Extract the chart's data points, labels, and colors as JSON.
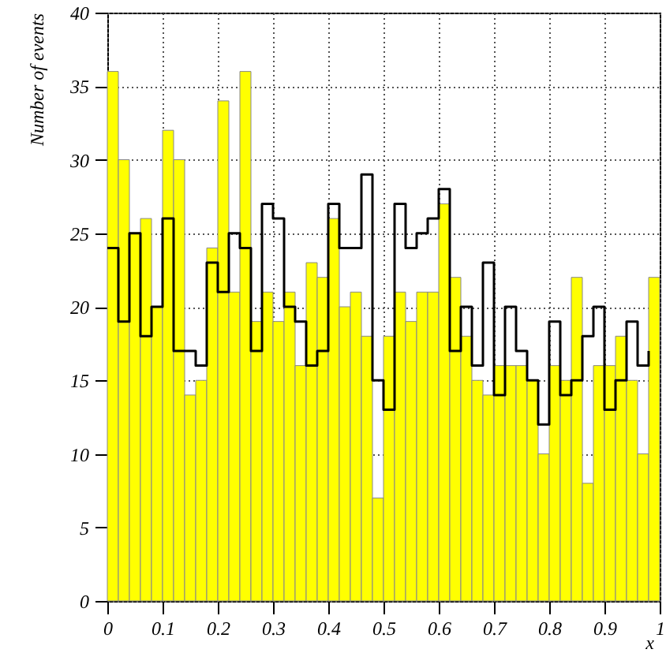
{
  "chart_data": {
    "type": "histogram",
    "xlabel": "x",
    "ylabel": "Number of events",
    "bins": [
      0,
      0.02,
      0.04,
      0.06,
      0.08,
      0.1,
      0.12,
      0.14,
      0.16,
      0.18,
      0.2,
      0.22,
      0.24,
      0.26,
      0.28,
      0.3,
      0.32,
      0.34,
      0.36,
      0.38,
      0.4,
      0.42,
      0.44,
      0.46,
      0.48,
      0.5,
      0.52,
      0.54,
      0.56,
      0.58,
      0.6,
      0.62,
      0.64,
      0.66,
      0.68,
      0.7,
      0.72,
      0.74,
      0.76,
      0.78,
      0.8,
      0.82,
      0.84,
      0.86,
      0.88,
      0.9,
      0.92,
      0.94,
      0.96,
      0.98,
      1
    ],
    "series": [
      {
        "color": "#ffff00",
        "values": [
          36,
          30,
          25,
          26,
          20,
          32,
          30,
          14,
          15,
          24,
          34,
          21,
          36,
          19,
          21,
          19,
          21,
          16,
          23,
          22,
          26,
          20,
          21,
          18,
          7,
          18,
          21,
          19,
          21,
          21,
          27,
          22,
          18,
          15,
          14,
          16,
          16,
          16,
          15,
          10,
          16,
          15,
          22,
          8,
          16,
          16,
          18,
          15,
          10,
          22
        ]
      },
      {
        "type": "step",
        "color": "#000000",
        "x": [
          0,
          0.02,
          0.04,
          0.06,
          0.08,
          0.1,
          0.12,
          0.14,
          0.16,
          0.18,
          0.2,
          0.22,
          0.24,
          0.26,
          0.28,
          0.3,
          0.32,
          0.34,
          0.36,
          0.38,
          0.4,
          0.42,
          0.44,
          0.46,
          0.48,
          0.5,
          0.52,
          0.54,
          0.56,
          0.58,
          0.6,
          0.62,
          0.64,
          0.66,
          0.68,
          0.7,
          0.72,
          0.74,
          0.76,
          0.78,
          0.8,
          0.82,
          0.84,
          0.86,
          0.88,
          0.9,
          0.92,
          0.94,
          0.96,
          0.98
        ],
        "values": [
          24,
          19,
          25,
          18,
          20,
          26,
          17,
          17,
          16,
          23,
          21,
          25,
          24,
          17,
          27,
          26,
          20,
          19,
          16,
          17,
          27,
          24,
          24,
          29,
          15,
          13,
          27,
          24,
          25,
          26,
          28,
          17,
          20,
          16,
          23,
          14,
          20,
          17,
          15,
          12,
          19,
          14,
          15,
          18,
          20,
          13,
          15,
          19,
          16,
          17
        ]
      }
    ],
    "xlim": [
      0,
      1
    ],
    "xticks": [
      0,
      0.1,
      0.2,
      0.3,
      0.4,
      0.5,
      0.6,
      0.7,
      0.8,
      0.9,
      1
    ],
    "ylim": [
      0,
      40
    ],
    "yticks": [
      0,
      5,
      10,
      15,
      20,
      25,
      30,
      35,
      40
    ],
    "grid": true
  }
}
